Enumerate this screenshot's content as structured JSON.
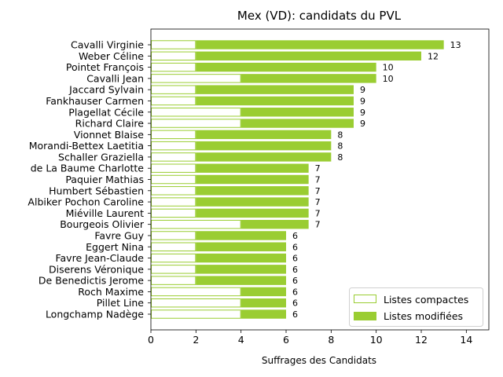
{
  "chart_data": {
    "type": "bar",
    "orientation": "horizontal",
    "stacked": true,
    "title": "Mex (VD): candidats du PVL",
    "xlabel": "Suffrages des Candidats",
    "ylabel": "",
    "xlim": [
      0,
      15
    ],
    "xticks": [
      "0",
      "2",
      "4",
      "6",
      "8",
      "10",
      "12",
      "14"
    ],
    "grid": false,
    "legend_position": "lower-right",
    "colors": {
      "modified": "#9acd32",
      "compact_edge": "#9acd32",
      "compact_fill": "#ffffff"
    },
    "categories": [
      "Cavalli Virginie",
      "Weber Céline",
      "Pointet François",
      "Cavalli Jean",
      "Jaccard Sylvain",
      "Fankhauser Carmen",
      "Plagellat Cécile",
      "Richard Claire",
      "Vionnet Blaise",
      "Morandi-Bettex Laetitia",
      "Schaller Graziella",
      "de La Baume Charlotte",
      "Paquier Mathias",
      "Humbert Sébastien",
      "Albiker Pochon Caroline",
      "Miéville Laurent",
      "Bourgeois Olivier",
      "Favre Guy",
      "Eggert Nina",
      "Favre Jean-Claude",
      "Diserens Véronique",
      "De Benedictis Jerome",
      "Roch Maxime",
      "Pillet Line",
      "Longchamp Nadège"
    ],
    "series": [
      {
        "name": "Listes compactes",
        "values": [
          2,
          2,
          2,
          4,
          2,
          2,
          4,
          4,
          2,
          2,
          2,
          2,
          2,
          2,
          2,
          2,
          4,
          2,
          2,
          2,
          2,
          2,
          4,
          4,
          4
        ]
      },
      {
        "name": "Listes modifiées",
        "values": [
          11,
          10,
          8,
          6,
          7,
          7,
          5,
          5,
          6,
          6,
          6,
          5,
          5,
          5,
          5,
          5,
          3,
          4,
          4,
          4,
          4,
          4,
          2,
          2,
          2
        ]
      }
    ],
    "totals": [
      "13",
      "12",
      "10",
      "10",
      "9",
      "9",
      "9",
      "9",
      "8",
      "8",
      "8",
      "7",
      "7",
      "7",
      "7",
      "7",
      "7",
      "6",
      "6",
      "6",
      "6",
      "6",
      "6",
      "6",
      "6"
    ]
  }
}
